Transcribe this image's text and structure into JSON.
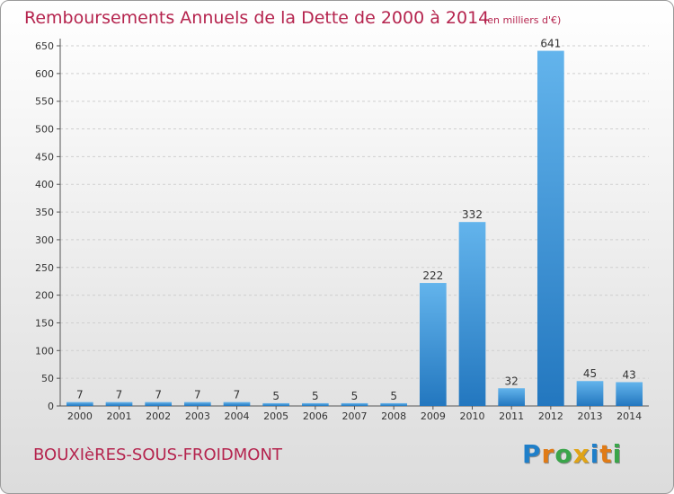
{
  "title": "Remboursements Annuels de la Dette de 2000 à 2014",
  "unit_note": "(en milliers d'€)",
  "commune": "BOUXIèRES-SOUS-FROIDMONT",
  "logo": {
    "letters": [
      {
        "ch": "P",
        "color": "#1f7fc9"
      },
      {
        "ch": "r",
        "color": "#e07b16"
      },
      {
        "ch": "o",
        "color": "#3aa54a"
      },
      {
        "ch": "x",
        "color": "#e0a417"
      },
      {
        "ch": "i",
        "color": "#1f7fc9"
      },
      {
        "ch": "t",
        "color": "#e07b16"
      },
      {
        "ch": "i",
        "color": "#3aa54a"
      }
    ]
  },
  "colors": {
    "bar_light": "#63b4ec",
    "bar_dark": "#2377bf",
    "accent": "#b5244e"
  },
  "chart_data": {
    "type": "bar",
    "title": "Remboursements Annuels de la Dette de 2000 à 2014",
    "xlabel": "",
    "ylabel": "",
    "categories": [
      "2000",
      "2001",
      "2002",
      "2003",
      "2004",
      "2005",
      "2006",
      "2007",
      "2008",
      "2009",
      "2010",
      "2011",
      "2012",
      "2013",
      "2014"
    ],
    "values": [
      7,
      7,
      7,
      7,
      7,
      5,
      5,
      5,
      5,
      222,
      332,
      32,
      641,
      45,
      43
    ],
    "ylim": [
      0,
      650
    ],
    "yticks": [
      0,
      50,
      100,
      150,
      200,
      250,
      300,
      350,
      400,
      450,
      500,
      550,
      600,
      650
    ],
    "grid": true,
    "data_labels": true
  }
}
